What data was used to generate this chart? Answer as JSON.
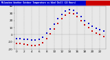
{
  "title": "Milwaukee Weather Outdoor Temperature vs Wind Chill (24 Hours)",
  "background_color": "#e8e8e8",
  "plot_bg": "#e8e8e8",
  "grid_color": "#aaaaaa",
  "temp_color": "#0000cc",
  "windchill_color": "#cc0000",
  "hours": [
    0,
    1,
    2,
    3,
    4,
    5,
    6,
    7,
    8,
    9,
    10,
    11,
    12,
    13,
    14,
    15,
    16,
    17,
    18,
    19,
    20,
    21,
    22,
    23
  ],
  "temp": [
    -5,
    -5,
    -6,
    -6,
    -7,
    -7,
    -6,
    -3,
    2,
    8,
    15,
    22,
    28,
    33,
    35,
    34,
    30,
    25,
    20,
    16,
    12,
    9,
    7,
    5
  ],
  "windchill": [
    -12,
    -12,
    -13,
    -14,
    -15,
    -15,
    -14,
    -11,
    -5,
    1,
    8,
    16,
    22,
    27,
    30,
    29,
    25,
    20,
    14,
    10,
    5,
    2,
    0,
    -2
  ],
  "ylim": [
    -20,
    40
  ],
  "xlim": [
    -0.5,
    23.5
  ],
  "title_bar_blue": "#0000cc",
  "title_bar_red": "#cc0000",
  "marker_size": 1.8,
  "tick_fontsize": 3.0,
  "title_fontsize": 3.0,
  "grid_hours": [
    0,
    2,
    4,
    6,
    8,
    10,
    12,
    14,
    16,
    18,
    20,
    22
  ],
  "xtick_hours": [
    0,
    2,
    4,
    6,
    8,
    10,
    12,
    14,
    16,
    18,
    20,
    22
  ],
  "xtick_labels": [
    "0",
    "2",
    "4",
    "6",
    "8",
    "10",
    "12",
    "14",
    "16",
    "18",
    "20",
    "22"
  ],
  "yticks": [
    -20,
    -10,
    0,
    10,
    20,
    30,
    40
  ],
  "ytick_labels": [
    "-20",
    "-10",
    "0",
    "10",
    "20",
    "30",
    "40"
  ]
}
